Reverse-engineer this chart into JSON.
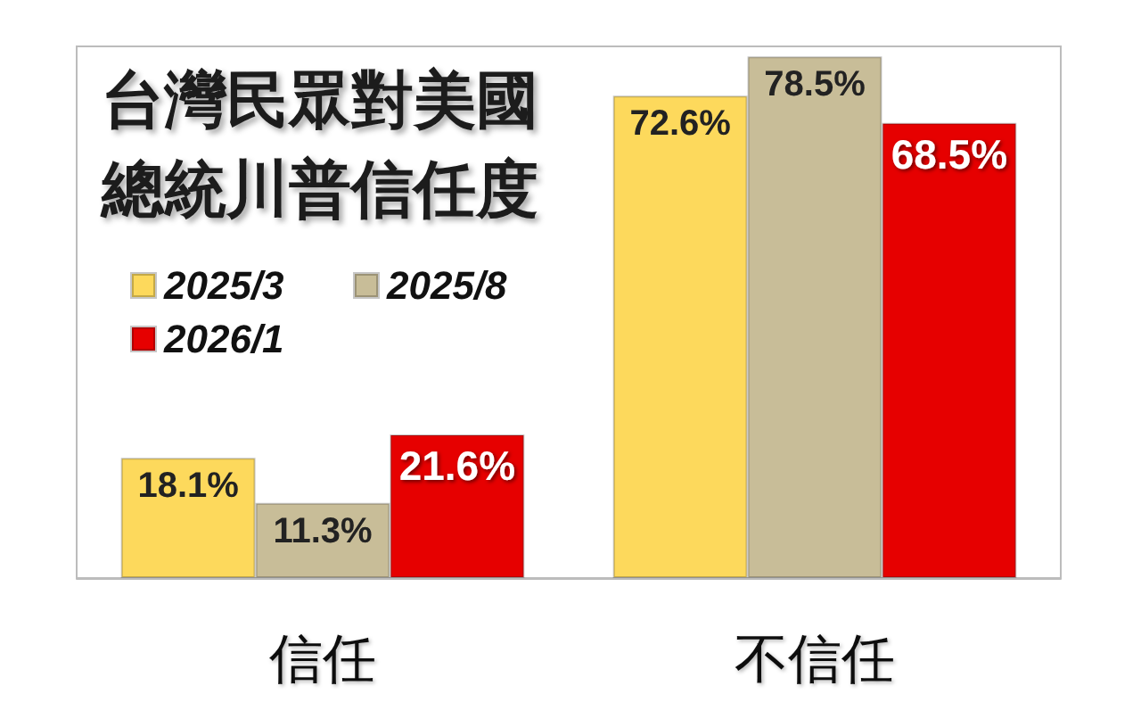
{
  "chart_data": {
    "type": "bar",
    "title": "台灣民眾對美國總統川普信任度",
    "categories": [
      "信任",
      "不信任"
    ],
    "series": [
      {
        "name": "2025/3",
        "color": "#fdd95c",
        "values": [
          18.1,
          72.6
        ],
        "value_labels": [
          "18.1%",
          "72.6%"
        ]
      },
      {
        "name": "2025/8",
        "color": "#c8bd98",
        "values": [
          11.3,
          78.5
        ],
        "value_labels": [
          "11.3%",
          "78.5%"
        ]
      },
      {
        "name": "2026/1",
        "color": "#e60000",
        "values": [
          21.6,
          68.5
        ],
        "value_labels": [
          "21.6%",
          "68.5%"
        ]
      }
    ],
    "legend": "left"
  }
}
